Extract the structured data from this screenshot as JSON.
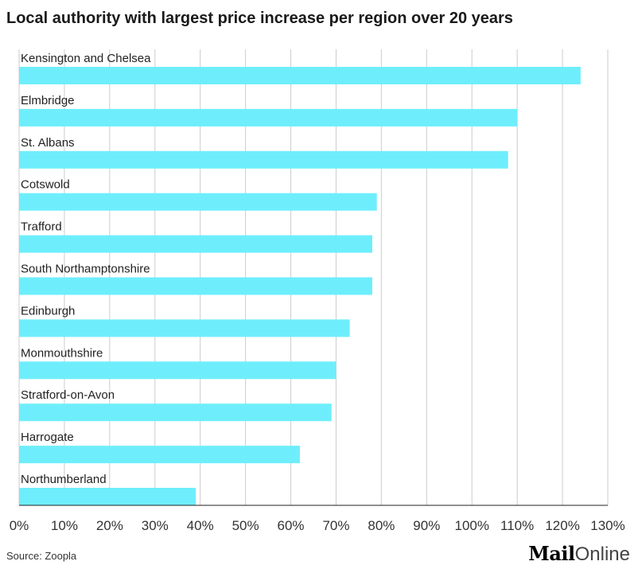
{
  "chart_data": {
    "type": "bar",
    "orientation": "horizontal",
    "title": "Local authority with largest price increase per region over 20 years",
    "categories": [
      "Kensington and Chelsea",
      "Elmbridge",
      "St. Albans",
      "Cotswold",
      "Trafford",
      "South Northamptonshire",
      "Edinburgh",
      "Monmouthshire",
      "Stratford-on-Avon",
      "Harrogate",
      "Northumberland"
    ],
    "values": [
      124,
      110,
      108,
      79,
      78,
      78,
      73,
      70,
      69,
      62,
      39
    ],
    "unit": "%",
    "xlim": [
      0,
      130
    ],
    "xticks": [
      "0%",
      "10%",
      "20%",
      "30%",
      "40%",
      "50%",
      "60%",
      "70%",
      "80%",
      "90%",
      "100%",
      "110%",
      "120%",
      "130%"
    ],
    "grid": true,
    "bar_color": "#6eeefc",
    "grid_color": "#cccccc"
  },
  "footer": {
    "source": "Source: Zoopla",
    "logo_mail": "Mail",
    "logo_online": "Online"
  }
}
